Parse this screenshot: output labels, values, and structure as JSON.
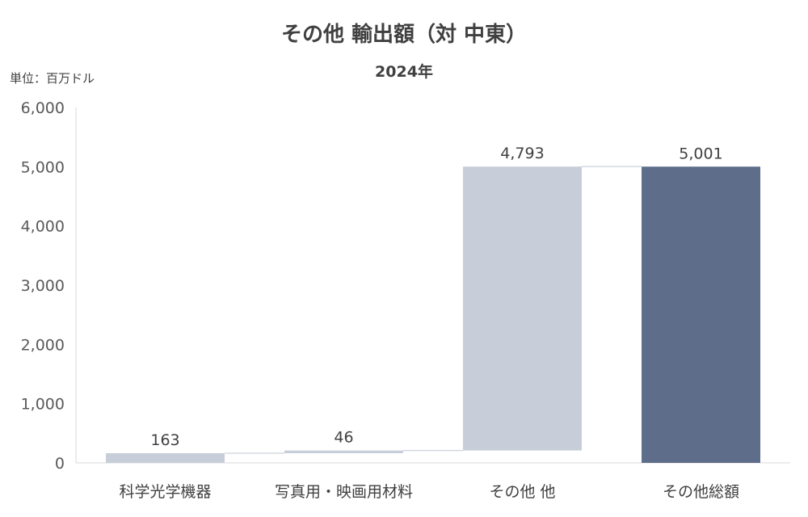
{
  "chart_data": {
    "type": "waterfall",
    "title": "その他 輸出額（対 中東）",
    "subtitle": "2024年",
    "unit_label": "単位：百万ドル",
    "categories": [
      "科学光学機器",
      "写真用・映画用材料",
      "その他 他",
      "その他総額"
    ],
    "values": [
      163,
      46,
      4793,
      5001
    ],
    "kinds": [
      "step",
      "step",
      "step",
      "total"
    ],
    "data_labels": [
      "163",
      "46",
      "4,793",
      "5,001"
    ],
    "y_ticks": [
      "0",
      "1,000",
      "2,000",
      "3,000",
      "4,000",
      "5,000",
      "6,000"
    ],
    "ylim": [
      0,
      6000
    ],
    "gridlines": false,
    "legend": "none",
    "colors": {
      "step": "#c8ced9",
      "total": "#5e6d8a",
      "connector": "#c8ced9",
      "axis": "#d9d9d9"
    }
  }
}
